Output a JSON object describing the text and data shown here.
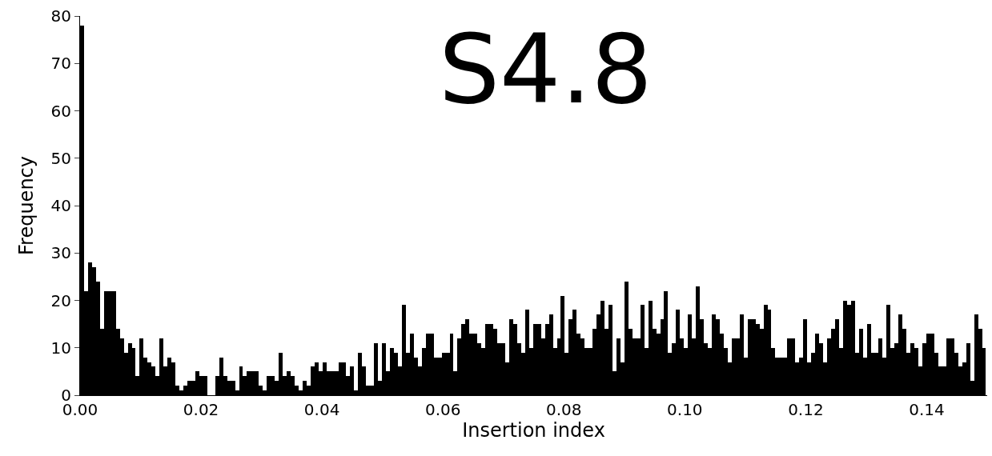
{
  "chart_data": {
    "type": "histogram",
    "title": "S4.8",
    "xlabel": "Insertion index",
    "ylabel": "Frequency",
    "bins": [
      0,
      0.000657,
      0.001314,
      0.001971,
      0.002628,
      0.003285,
      0.003942,
      0.004599,
      0.005256,
      0.005913,
      0.00657,
      0.007227,
      0.007884,
      0.008541,
      0.009198,
      0.009855,
      0.010512,
      0.011169,
      0.011826,
      0.012483,
      0.01314,
      0.013797,
      0.014454,
      0.015111,
      0.015768,
      0.016425,
      0.017082,
      0.017739,
      0.018396,
      0.019053,
      0.01971,
      0.020367,
      0.021024,
      0.021681,
      0.022338,
      0.022995,
      0.023652,
      0.024309,
      0.024966,
      0.025623,
      0.02628,
      0.026937,
      0.027594,
      0.028251,
      0.028908,
      0.029565,
      0.030222,
      0.030879,
      0.031536,
      0.032193,
      0.03285,
      0.033507,
      0.034164,
      0.034821,
      0.035478,
      0.036135,
      0.036792,
      0.037449,
      0.038106,
      0.038763,
      0.03942,
      0.040077,
      0.040734,
      0.041391,
      0.042048,
      0.042705,
      0.043362,
      0.044019,
      0.044676,
      0.045333,
      0.04599,
      0.046647,
      0.047304,
      0.047961,
      0.048618,
      0.049275,
      0.049932,
      0.050589,
      0.051246,
      0.051903,
      0.05256,
      0.053217,
      0.053874,
      0.054531,
      0.055188,
      0.055845,
      0.056502,
      0.057159,
      0.057816,
      0.058473,
      0.05913,
      0.059787,
      0.060444,
      0.061101,
      0.061758,
      0.062415,
      0.063072,
      0.063729,
      0.064386,
      0.065043,
      0.0657,
      0.066357,
      0.067014,
      0.067671,
      0.068328,
      0.068985,
      0.069642,
      0.070299,
      0.070956,
      0.071613,
      0.07227,
      0.072927,
      0.073584,
      0.074241,
      0.074898,
      0.075555,
      0.076212,
      0.076869,
      0.077526,
      0.078183,
      0.07884,
      0.079497,
      0.080154,
      0.080811,
      0.081468,
      0.082125,
      0.082782,
      0.083439,
      0.084096,
      0.084753,
      0.08541,
      0.086067,
      0.086724,
      0.087381,
      0.088038,
      0.088695,
      0.089352,
      0.090009,
      0.090666,
      0.091323,
      0.09198,
      0.092637,
      0.093294,
      0.093951,
      0.094608,
      0.095265,
      0.095922,
      0.096579,
      0.097236,
      0.097893,
      0.09855,
      0.099207,
      0.099864,
      0.100521,
      0.101178,
      0.101835,
      0.102492,
      0.103149,
      0.103806,
      0.104463,
      0.10512,
      0.105777,
      0.106434,
      0.107091,
      0.107748,
      0.108405,
      0.109062,
      0.109719,
      0.110376,
      0.111033,
      0.11169,
      0.112347,
      0.113004,
      0.113661,
      0.114318,
      0.114975,
      0.115632,
      0.116289,
      0.116946,
      0.117603,
      0.11826,
      0.118917,
      0.119574,
      0.120231,
      0.120888,
      0.121545,
      0.122202,
      0.122859,
      0.123516,
      0.124173,
      0.12483,
      0.125487,
      0.126144,
      0.126801,
      0.127458,
      0.128115,
      0.128772,
      0.129429,
      0.130086,
      0.130743,
      0.1314,
      0.132057,
      0.132714,
      0.133371,
      0.134028,
      0.134685,
      0.135342,
      0.135999,
      0.136656,
      0.137313,
      0.13797,
      0.138627,
      0.139284,
      0.139941,
      0.140598,
      0.141255,
      0.141912,
      0.142569,
      0.143226,
      0.143883,
      0.14454,
      0.145197,
      0.145854,
      0.146511,
      0.147168,
      0.147825,
      0.148482,
      0.149139,
      0.149796
    ],
    "values": [
      78,
      22,
      28,
      27,
      24,
      14,
      22,
      22,
      22,
      14,
      12,
      9,
      11,
      10,
      4,
      12,
      8,
      7,
      6,
      4,
      12,
      6,
      8,
      7,
      2,
      1,
      2,
      3,
      3,
      5,
      4,
      4,
      0,
      0,
      4,
      8,
      4,
      3,
      3,
      1,
      6,
      4,
      5,
      5,
      5,
      2,
      1,
      4,
      4,
      3,
      9,
      4,
      5,
      4,
      2,
      1,
      3,
      2,
      6,
      7,
      5,
      7,
      5,
      5,
      5,
      7,
      7,
      4,
      6,
      1,
      9,
      6,
      2,
      2,
      11,
      3,
      11,
      5,
      10,
      9,
      6,
      19,
      9,
      13,
      8,
      6,
      10,
      13,
      13,
      8,
      8,
      9,
      9,
      13,
      5,
      12,
      15,
      16,
      13,
      13,
      11,
      10,
      15,
      15,
      14,
      11,
      11,
      7,
      16,
      15,
      11,
      9,
      18,
      10,
      15,
      15,
      12,
      15,
      17,
      10,
      12,
      21,
      9,
      16,
      18,
      13,
      12,
      10,
      10,
      14,
      17,
      20,
      14,
      19,
      5,
      12,
      7,
      24,
      14,
      12,
      12,
      19,
      10,
      20,
      14,
      13,
      16,
      22,
      9,
      11,
      18,
      12,
      10,
      17,
      12,
      23,
      16,
      11,
      10,
      17,
      16,
      13,
      10,
      7,
      12,
      12,
      17,
      8,
      16,
      16,
      15,
      14,
      19,
      18,
      10,
      8,
      8,
      8,
      12,
      12,
      7,
      8,
      16,
      7,
      9,
      13,
      11,
      7,
      12,
      14,
      16,
      10,
      20,
      19,
      20,
      9,
      14,
      8,
      15,
      9,
      9,
      12,
      8,
      19,
      10,
      11,
      17,
      14,
      9,
      11,
      10,
      6,
      11,
      13,
      13,
      9,
      6,
      6,
      12,
      12,
      9,
      6,
      7,
      11,
      3,
      17,
      14,
      10
    ],
    "color": "#000000",
    "xlim": [
      0,
      0.15
    ],
    "ylim": [
      0,
      80
    ],
    "xticks": [
      {
        "value": 0,
        "label": "0.00"
      },
      {
        "value": 0.02,
        "label": "0.02"
      },
      {
        "value": 0.04,
        "label": "0.04"
      },
      {
        "value": 0.06,
        "label": "0.06"
      },
      {
        "value": 0.08,
        "label": "0.08"
      },
      {
        "value": 0.1,
        "label": "0.10"
      },
      {
        "value": 0.12,
        "label": "0.12"
      },
      {
        "value": 0.14,
        "label": "0.14"
      }
    ],
    "yticks": [
      0,
      10,
      20,
      30,
      40,
      50,
      60,
      70,
      80
    ],
    "grid": false
  }
}
